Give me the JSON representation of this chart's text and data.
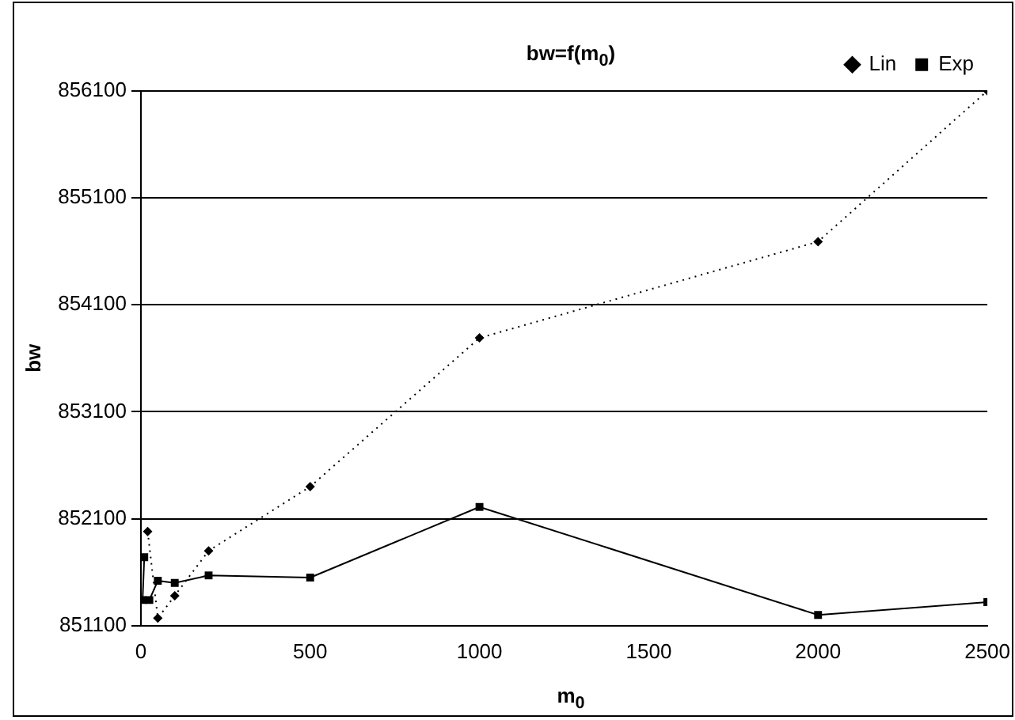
{
  "chart_data": {
    "type": "line",
    "title": "bw=f(m$_{0}$)",
    "xlabel": "m$_{0}$",
    "ylabel": "bw",
    "xlim": [
      0,
      2500
    ],
    "xticks": [
      0,
      500,
      1000,
      1500,
      2000,
      2500
    ],
    "ylim": [
      851100,
      856100
    ],
    "yticks": [
      851100,
      852100,
      853100,
      854100,
      855100,
      856100
    ],
    "grid": "y",
    "legend": "top right",
    "series": [
      {
        "name": "Lin",
        "color": "#000000",
        "marker": "diamond",
        "line_style": "dotted",
        "x": [
          20,
          50,
          100,
          200,
          500,
          1000,
          2000,
          2500
        ],
        "values": [
          851980,
          851170,
          851380,
          851800,
          852400,
          853790,
          854690,
          856100
        ]
      },
      {
        "name": "Exp",
        "color": "#000000",
        "marker": "square",
        "line_style": "solid",
        "x": [
          10,
          5,
          25,
          50,
          100,
          200,
          500,
          1000,
          2000,
          2500
        ],
        "values": [
          851740,
          851340,
          851340,
          851520,
          851500,
          851570,
          851550,
          852210,
          851200,
          851320
        ]
      }
    ]
  }
}
